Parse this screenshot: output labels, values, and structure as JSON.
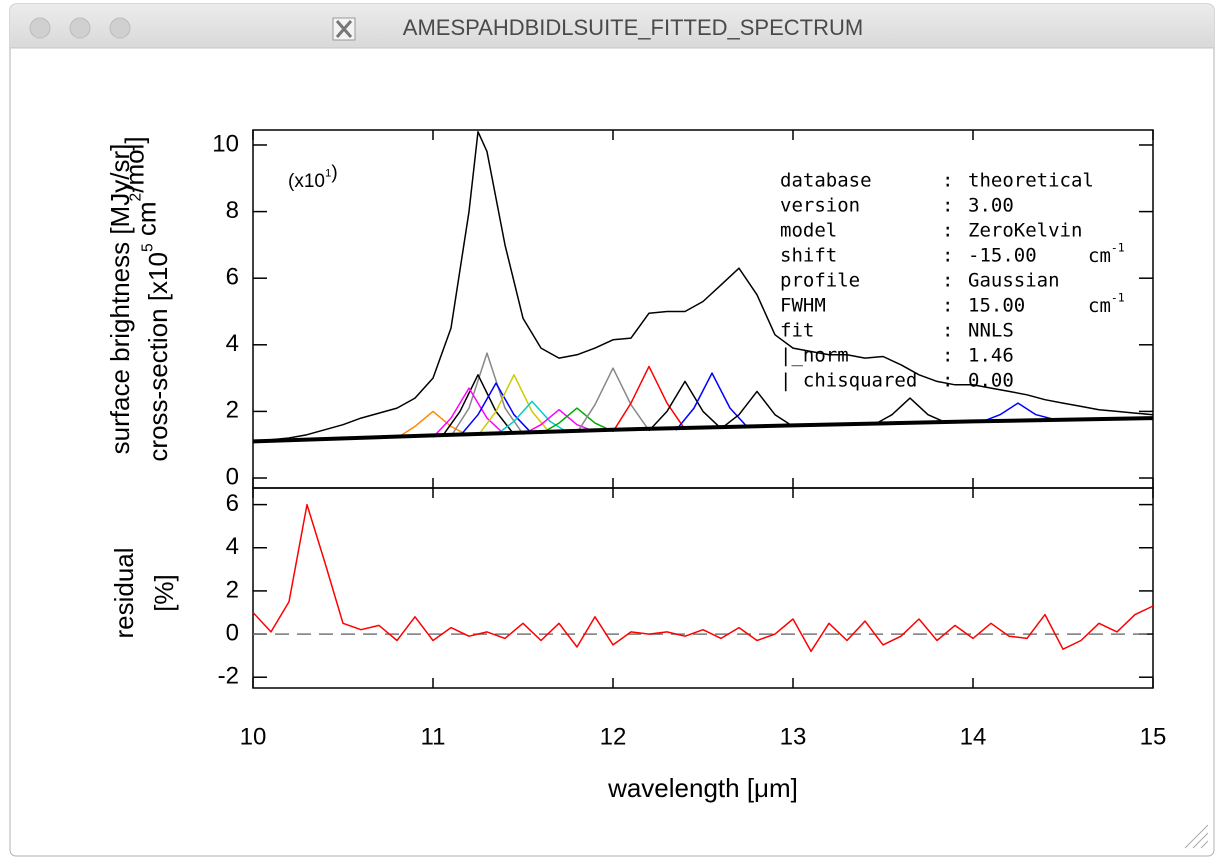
{
  "window": {
    "title": "AMESPAHDBIDLSUITE_FITTED_SPECTRUM"
  },
  "chart_data": [
    {
      "type": "line",
      "xlim": [
        10,
        15
      ],
      "ylim": [
        -0.3,
        10.45
      ],
      "yticks": [
        0,
        2,
        4,
        6,
        8,
        10
      ],
      "ylabel": [
        [
          "surface brightness [MJy/sr]"
        ],
        [
          "cross-section [x10",
          {
            "sup": "5"
          },
          " cm",
          {
            "sup": "2"
          },
          "/mol]"
        ]
      ],
      "scale_note": [
        "(x10",
        {
          "sup": "1"
        },
        ")"
      ],
      "info": {
        "separator": ":",
        "rows": [
          {
            "key": "database",
            "value": "theoretical"
          },
          {
            "key": "version",
            "value": "3.00"
          },
          {
            "key": "model",
            "value": "ZeroKelvin"
          },
          {
            "key": "shift",
            "value": "-15.00",
            "unit": [
              "cm",
              {
                "sup": "-1"
              }
            ]
          },
          {
            "key": "profile",
            "value": "Gaussian"
          },
          {
            "key": "FWHM",
            "value": "15.00",
            "unit": [
              "cm",
              {
                "sup": "-1"
              }
            ]
          },
          {
            "key": "fit",
            "value": "NNLS"
          },
          {
            "key": "|_norm",
            "value": "1.46"
          },
          {
            "key": "| chisquared",
            "value": "0.00"
          }
        ]
      },
      "series": [
        {
          "color": "#ff8800",
          "x": [
            10.8,
            10.9,
            11.0,
            11.1,
            11.2
          ],
          "values": [
            1.2,
            1.55,
            2.0,
            1.55,
            1.26
          ]
        },
        {
          "color": "#888888",
          "x": [
            11.1,
            11.2,
            11.3,
            11.4,
            11.5
          ],
          "values": [
            1.25,
            2.1,
            3.75,
            2.1,
            1.32
          ]
        },
        {
          "color": "#000000",
          "x": [
            11.05,
            11.15,
            11.25,
            11.35,
            11.45
          ],
          "values": [
            1.24,
            2.0,
            3.1,
            2.0,
            1.31
          ]
        },
        {
          "color": "#ff00ff",
          "x": [
            11.0,
            11.1,
            11.2,
            11.3,
            11.4
          ],
          "values": [
            1.22,
            1.8,
            2.7,
            1.8,
            1.29
          ]
        },
        {
          "color": "#0000ff",
          "x": [
            11.15,
            11.25,
            11.35,
            11.45,
            11.55
          ],
          "values": [
            1.26,
            1.9,
            2.85,
            1.9,
            1.33
          ]
        },
        {
          "color": "#cccc00",
          "x": [
            11.25,
            11.35,
            11.45,
            11.55,
            11.65
          ],
          "values": [
            1.27,
            2.0,
            3.1,
            2.0,
            1.35
          ]
        },
        {
          "color": "#00cccc",
          "x": [
            11.35,
            11.45,
            11.55,
            11.65,
            11.75
          ],
          "values": [
            1.29,
            1.7,
            2.3,
            1.7,
            1.36
          ]
        },
        {
          "color": "#ff00ff",
          "x": [
            11.5,
            11.6,
            11.7,
            11.8,
            11.9
          ],
          "values": [
            1.31,
            1.6,
            2.05,
            1.6,
            1.39
          ]
        },
        {
          "color": "#00aa00",
          "x": [
            11.6,
            11.7,
            11.8,
            11.9,
            12.0
          ],
          "values": [
            1.33,
            1.65,
            2.1,
            1.65,
            1.4
          ]
        },
        {
          "color": "#888888",
          "x": [
            11.8,
            11.9,
            12.0,
            12.1,
            12.2
          ],
          "values": [
            1.36,
            2.2,
            3.3,
            2.2,
            1.43
          ]
        },
        {
          "color": "#ff0000",
          "x": [
            12.0,
            12.1,
            12.2,
            12.3,
            12.4
          ],
          "values": [
            1.39,
            2.25,
            3.35,
            2.25,
            1.46
          ]
        },
        {
          "color": "#000000",
          "x": [
            12.2,
            12.3,
            12.4,
            12.5,
            12.6
          ],
          "values": [
            1.42,
            2.0,
            2.9,
            2.0,
            1.49
          ]
        },
        {
          "color": "#0000ff",
          "x": [
            12.35,
            12.45,
            12.55,
            12.65,
            12.75
          ],
          "values": [
            1.44,
            2.1,
            3.15,
            2.1,
            1.51
          ]
        },
        {
          "color": "#000000",
          "x": [
            12.6,
            12.7,
            12.8,
            12.9,
            13.0
          ],
          "values": [
            1.48,
            1.9,
            2.6,
            1.9,
            1.55
          ]
        },
        {
          "color": "#000000",
          "x": [
            13.45,
            13.55,
            13.65,
            13.75,
            13.85
          ],
          "values": [
            1.6,
            1.9,
            2.4,
            1.9,
            1.66
          ]
        },
        {
          "color": "#0000ff",
          "x": [
            14.05,
            14.15,
            14.25,
            14.35,
            14.45
          ],
          "values": [
            1.69,
            1.9,
            2.25,
            1.9,
            1.76
          ]
        },
        {
          "color": "#000000",
          "linewidth": 4,
          "x": [
            10,
            11,
            12,
            13,
            14,
            15
          ],
          "values": [
            1.1,
            1.28,
            1.45,
            1.58,
            1.7,
            1.8
          ]
        },
        {
          "color": "#000000",
          "x": [
            10.0,
            10.1,
            10.2,
            10.3,
            10.4,
            10.5,
            10.6,
            10.7,
            10.8,
            10.9,
            11.0,
            11.1,
            11.2,
            11.25,
            11.3,
            11.4,
            11.5,
            11.6,
            11.7,
            11.8,
            11.9,
            12.0,
            12.1,
            12.2,
            12.3,
            12.4,
            12.5,
            12.6,
            12.7,
            12.8,
            12.9,
            13.0,
            13.1,
            13.2,
            13.3,
            13.4,
            13.5,
            13.6,
            13.7,
            13.8,
            13.9,
            14.0,
            14.1,
            14.2,
            14.3,
            14.4,
            14.5,
            14.6,
            14.7,
            14.8,
            14.9,
            15.0
          ],
          "values": [
            1.1,
            1.15,
            1.2,
            1.3,
            1.45,
            1.6,
            1.8,
            1.95,
            2.1,
            2.4,
            3.0,
            4.5,
            8.0,
            10.4,
            9.8,
            7.0,
            4.8,
            3.9,
            3.6,
            3.7,
            3.9,
            4.15,
            4.2,
            4.95,
            5.0,
            5.0,
            5.3,
            5.8,
            6.3,
            5.5,
            4.3,
            3.9,
            3.8,
            3.7,
            3.7,
            3.6,
            3.65,
            3.4,
            3.1,
            2.9,
            2.8,
            2.8,
            2.7,
            2.6,
            2.5,
            2.35,
            2.25,
            2.15,
            2.05,
            2.0,
            1.95,
            1.9
          ]
        }
      ]
    },
    {
      "type": "line",
      "xlim": [
        10,
        15
      ],
      "xticks": [
        10,
        11,
        12,
        13,
        14,
        15
      ],
      "xlabel": "wavelength [μm]",
      "ylim": [
        -2.5,
        6.77
      ],
      "yticks": [
        -2,
        0,
        2,
        4,
        6
      ],
      "ylabel": [
        [
          "residual"
        ],
        [
          "[%]"
        ]
      ],
      "hline": 0,
      "series": [
        {
          "color": "#ff0000",
          "x": [
            10.0,
            10.1,
            10.2,
            10.3,
            10.4,
            10.5,
            10.6,
            10.7,
            10.8,
            10.9,
            11.0,
            11.1,
            11.2,
            11.3,
            11.4,
            11.5,
            11.6,
            11.7,
            11.8,
            11.9,
            12.0,
            12.1,
            12.2,
            12.3,
            12.4,
            12.5,
            12.6,
            12.7,
            12.8,
            12.9,
            13.0,
            13.1,
            13.2,
            13.3,
            13.4,
            13.5,
            13.6,
            13.7,
            13.8,
            13.9,
            14.0,
            14.1,
            14.2,
            14.3,
            14.4,
            14.5,
            14.6,
            14.7,
            14.8,
            14.9,
            15.0
          ],
          "values": [
            1.0,
            0.1,
            1.5,
            6.0,
            3.3,
            0.5,
            0.2,
            0.4,
            -0.3,
            0.8,
            -0.3,
            0.3,
            -0.1,
            0.1,
            -0.2,
            0.5,
            -0.3,
            0.5,
            -0.6,
            0.8,
            -0.5,
            0.1,
            0.0,
            0.1,
            -0.1,
            0.2,
            -0.2,
            0.3,
            -0.3,
            0.0,
            0.7,
            -0.8,
            0.5,
            -0.3,
            0.6,
            -0.5,
            -0.1,
            0.7,
            -0.3,
            0.4,
            -0.2,
            0.5,
            -0.1,
            -0.2,
            0.9,
            -0.7,
            -0.3,
            0.5,
            0.1,
            0.9,
            1.3
          ]
        }
      ]
    }
  ]
}
